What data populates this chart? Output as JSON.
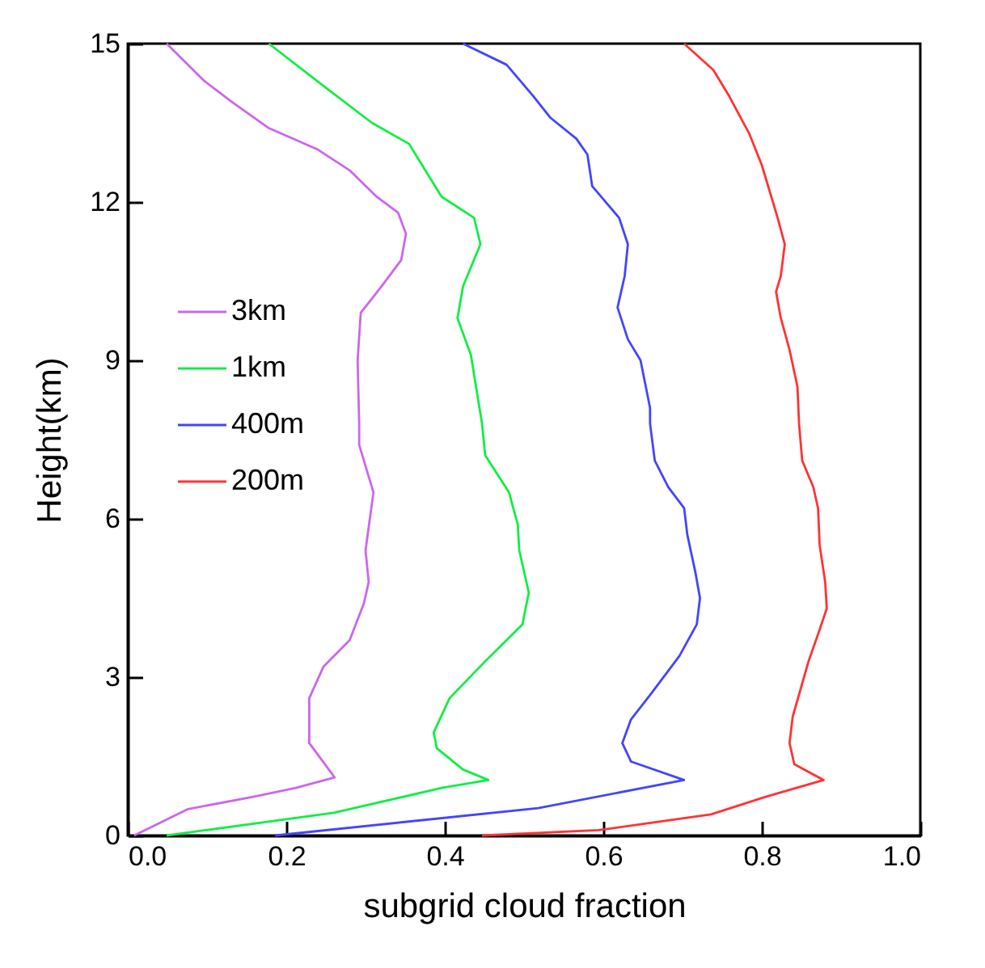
{
  "chart_data": {
    "type": "line",
    "xlabel": "subgrid cloud fraction",
    "ylabel": "Height(km)",
    "xlim": [
      0,
      1
    ],
    "xticks": [
      {
        "value": 0,
        "label": "0.0"
      },
      {
        "value": 0.2,
        "label": "0.2"
      },
      {
        "value": 0.4,
        "label": "0.4"
      },
      {
        "value": 0.6,
        "label": "0.6"
      },
      {
        "value": 0.8,
        "label": "0.8"
      },
      {
        "value": 1,
        "label": "1.0"
      }
    ],
    "ylim": [
      0,
      15
    ],
    "yticks": [
      0,
      3,
      6,
      9,
      12,
      15
    ],
    "grid": false,
    "legend": "left",
    "marker": "none",
    "line_style": "solid",
    "series": [
      {
        "name": "3km",
        "color": "#cc66ee",
        "x": [
          0.008,
          0.076,
          0.157,
          0.212,
          0.261,
          0.229,
          0.229,
          0.247,
          0.28,
          0.298,
          0.304,
          0.3,
          0.31,
          0.292,
          0.292,
          0.29,
          0.294,
          0.32,
          0.345,
          0.351,
          0.341,
          0.314,
          0.28,
          0.239,
          0.178,
          0.131,
          0.096,
          0.049
        ],
        "values": [
          0,
          0.5,
          0.73,
          0.9,
          1.1,
          1.75,
          2.6,
          3.2,
          3.7,
          4.4,
          4.8,
          5.4,
          6.5,
          7.4,
          7.8,
          9.0,
          9.9,
          10.4,
          10.9,
          11.4,
          11.8,
          12.1,
          12.6,
          13.0,
          13.4,
          13.9,
          14.3,
          15
        ]
      },
      {
        "name": "1km",
        "color": "#11ee44",
        "x": [
          0.049,
          0.26,
          0.396,
          0.455,
          0.423,
          0.39,
          0.386,
          0.406,
          0.451,
          0.498,
          0.506,
          0.494,
          0.492,
          0.481,
          0.451,
          0.447,
          0.433,
          0.416,
          0.423,
          0.445,
          0.437,
          0.396,
          0.355,
          0.308,
          0.247,
          0.178
        ],
        "values": [
          0,
          0.43,
          0.9,
          1.05,
          1.25,
          1.65,
          1.95,
          2.6,
          3.3,
          4.0,
          4.6,
          5.4,
          5.9,
          6.5,
          7.2,
          7.8,
          9.1,
          9.8,
          10.4,
          11.2,
          11.7,
          12.1,
          13.1,
          13.5,
          14.2,
          15
        ]
      },
      {
        "name": "400m",
        "color": "#4444ff",
        "x": [
          0.186,
          0.518,
          0.702,
          0.635,
          0.624,
          0.635,
          0.661,
          0.696,
          0.718,
          0.722,
          0.716,
          0.706,
          0.702,
          0.682,
          0.665,
          0.659,
          0.659,
          0.647,
          0.631,
          0.618,
          0.627,
          0.631,
          0.62,
          0.586,
          0.58,
          0.566,
          0.533,
          0.512,
          0.478,
          0.423
        ],
        "values": [
          0,
          0.52,
          1.05,
          1.4,
          1.75,
          2.2,
          2.7,
          3.4,
          4.0,
          4.5,
          5.0,
          5.7,
          6.2,
          6.6,
          7.1,
          7.8,
          8.1,
          9.0,
          9.4,
          10.0,
          10.6,
          11.2,
          11.7,
          12.3,
          12.9,
          13.2,
          13.6,
          14.0,
          14.6,
          15
        ]
      },
      {
        "name": "200m",
        "color": "#ff3333",
        "x": [
          0.447,
          0.594,
          0.736,
          0.804,
          0.878,
          0.841,
          0.835,
          0.839,
          0.859,
          0.873,
          0.882,
          0.88,
          0.873,
          0.871,
          0.865,
          0.851,
          0.847,
          0.845,
          0.835,
          0.824,
          0.818,
          0.824,
          0.829,
          0.82,
          0.8,
          0.784,
          0.759,
          0.739,
          0.702
        ],
        "values": [
          0,
          0.1,
          0.4,
          0.73,
          1.05,
          1.35,
          1.75,
          2.25,
          3.3,
          3.9,
          4.3,
          4.8,
          5.5,
          6.2,
          6.6,
          7.1,
          7.8,
          8.5,
          9.2,
          9.8,
          10.3,
          10.6,
          11.2,
          11.7,
          12.7,
          13.3,
          14.0,
          14.5,
          15
        ]
      }
    ]
  }
}
